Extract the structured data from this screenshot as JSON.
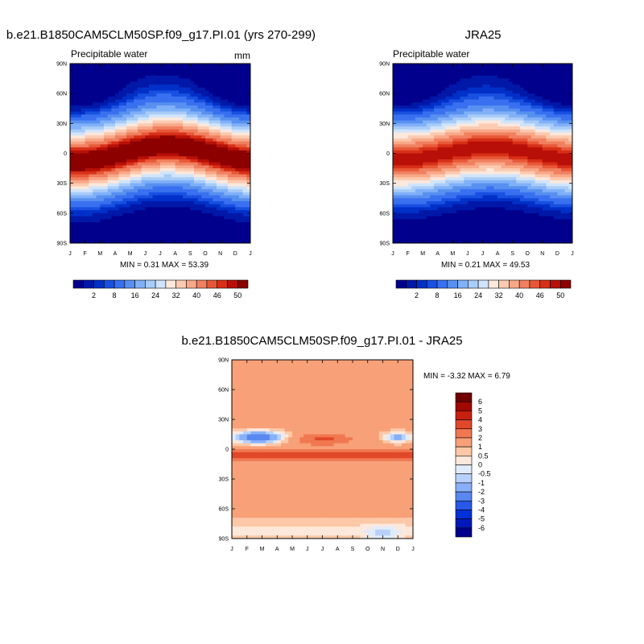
{
  "figure": {
    "title_left": "b.e21.B1850CAM5CLM50SP.f09_g17.PI.01 (yrs 270-299)",
    "title_right": "JRA25",
    "title_diff": "b.e21.B1850CAM5CLM50SP.f09_g17.PI.01 - JRA25"
  },
  "colors": {
    "abs_scale": [
      "#00008c",
      "#0018a8",
      "#0030c8",
      "#1850e0",
      "#3870f0",
      "#5890f0",
      "#80b0f8",
      "#a8ccf8",
      "#d0e4fc",
      "#fce8dc",
      "#fccab0",
      "#f8a888",
      "#f08060",
      "#e85838",
      "#d83018",
      "#b81008",
      "#8c0000"
    ],
    "diff_scale": [
      "#00008c",
      "#0018b8",
      "#0030d8",
      "#2858e8",
      "#5888f0",
      "#88b0f8",
      "#b8d0fc",
      "#e0ecfc",
      "#fde8dc",
      "#fcc8a8",
      "#f8a078",
      "#f07850",
      "#e04828",
      "#c82010",
      "#a00800",
      "#700000"
    ]
  },
  "chart_data": [
    {
      "type": "heatmap",
      "name": "model",
      "subtitle": "Precipitable water",
      "units": "mm",
      "x_ticks": [
        "J",
        "F",
        "M",
        "A",
        "M",
        "J",
        "J",
        "A",
        "S",
        "O",
        "N",
        "D",
        "J"
      ],
      "y_ticks": [
        "90N",
        "60N",
        "30N",
        "0",
        "30S",
        "60S",
        "90S"
      ],
      "y_values": [
        90,
        60,
        30,
        0,
        -30,
        -60,
        -90
      ],
      "minmax_text": "MIN =   0.31 MAX =  53.39",
      "min": 0.31,
      "max": 53.39,
      "itcz": {
        "amplitude": 8,
        "peak_month": 7.5
      },
      "colorbar_labels": [
        "2",
        "8",
        "16",
        "24",
        "32",
        "40",
        "46",
        "50"
      ]
    },
    {
      "type": "heatmap",
      "name": "JRA25",
      "subtitle": "Precipitable water",
      "units": "",
      "x_ticks": [
        "J",
        "F",
        "M",
        "A",
        "M",
        "J",
        "J",
        "A",
        "S",
        "O",
        "N",
        "D",
        "J"
      ],
      "y_ticks": [
        "90N",
        "60N",
        "30N",
        "0",
        "30S",
        "60S",
        "90S"
      ],
      "y_values": [
        90,
        60,
        30,
        0,
        -30,
        -60,
        -90
      ],
      "minmax_text": "MIN =   0.21 MAX =  49.53",
      "min": 0.21,
      "max": 49.53,
      "itcz": {
        "amplitude": 6,
        "peak_month": 7.5
      },
      "colorbar_labels": [
        "2",
        "8",
        "16",
        "24",
        "32",
        "40",
        "46",
        "50"
      ]
    },
    {
      "type": "heatmap",
      "name": "difference",
      "subtitle": "",
      "x_ticks": [
        "J",
        "F",
        "M",
        "A",
        "M",
        "J",
        "J",
        "A",
        "S",
        "O",
        "N",
        "D",
        "J"
      ],
      "y_ticks": [
        "90N",
        "60N",
        "30N",
        "0",
        "30S",
        "60S",
        "90S"
      ],
      "y_values": [
        90,
        60,
        30,
        0,
        -30,
        -60,
        -90
      ],
      "minmax_text": "MIN =  -3.32 MAX =   6.79",
      "min": -3.32,
      "max": 6.79,
      "levels": [
        -6,
        -5,
        -4,
        -3,
        -2,
        -1,
        -0.5,
        0,
        0.5,
        1,
        2,
        3,
        4,
        5,
        6
      ],
      "colorbar_labels": [
        "6",
        "5",
        "4",
        "3",
        "2",
        "1",
        "0.5",
        "0",
        "-0.5",
        "-1",
        "-2",
        "-3",
        "-4",
        "-5",
        "-6"
      ]
    }
  ]
}
